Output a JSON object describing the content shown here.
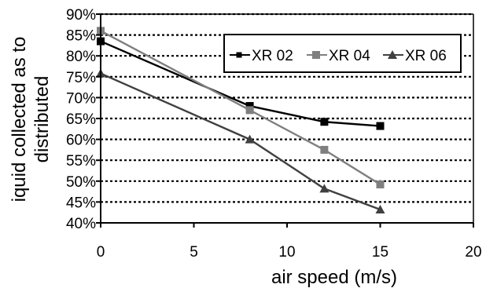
{
  "chart_data": {
    "type": "line",
    "xlabel": "air speed (m/s)",
    "ylabel_lines": [
      "iquid collected as to",
      "distributed"
    ],
    "xlim": [
      0,
      20
    ],
    "ylim": [
      40,
      90
    ],
    "x_ticks": [
      0,
      5,
      10,
      15,
      20
    ],
    "y_ticks": [
      40,
      45,
      50,
      55,
      60,
      65,
      70,
      75,
      80,
      85,
      90
    ],
    "y_tick_labels": [
      "40%",
      "45%",
      "50%",
      "55%",
      "60%",
      "65%",
      "70%",
      "75%",
      "80%",
      "85%",
      "90%"
    ],
    "grid": "horizontal dotted",
    "legend_position": "top-right",
    "series": [
      {
        "name": "XR 02",
        "marker": "square",
        "color": "#000000",
        "x": [
          0,
          8,
          12,
          15
        ],
        "y": [
          83.5,
          68.0,
          64.2,
          63.2
        ]
      },
      {
        "name": "XR 04",
        "marker": "square",
        "color": "#7f7f7f",
        "x": [
          0,
          8,
          12,
          15
        ],
        "y": [
          86.0,
          67.0,
          57.5,
          49.2
        ]
      },
      {
        "name": "XR 06",
        "marker": "triangle",
        "color": "#404040",
        "x": [
          0,
          8,
          12,
          15
        ],
        "y": [
          75.8,
          60.0,
          48.2,
          43.2
        ]
      }
    ]
  }
}
